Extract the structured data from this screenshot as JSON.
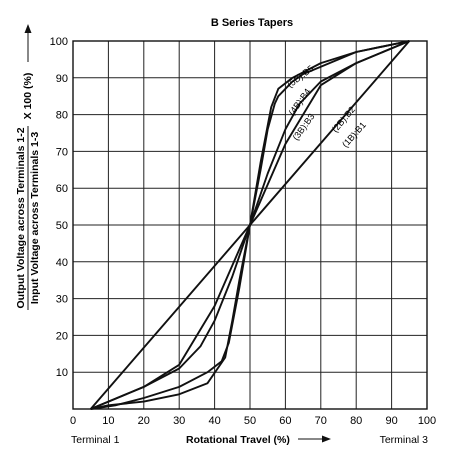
{
  "chart_data": {
    "type": "line",
    "title": "B Series Tapers",
    "xlabel": "Rotational Travel (%)",
    "ylabel_numerator": "Output Voltage across Terminals 1-2",
    "ylabel_denominator": "Input Voltage across Terminals 1-3",
    "ylabel_factor": "X 100 (%)",
    "xlim": [
      0,
      100
    ],
    "ylim": [
      0,
      100
    ],
    "x_ticks": [
      "0",
      "10",
      "20",
      "30",
      "40",
      "50",
      "60",
      "70",
      "80",
      "90",
      "100"
    ],
    "y_ticks": [
      "10",
      "20",
      "30",
      "40",
      "50",
      "60",
      "70",
      "80",
      "90",
      "100"
    ],
    "grid": true,
    "terminal_left": "Terminal 1",
    "terminal_right": "Terminal 3",
    "series": [
      {
        "name": "(1B):B1",
        "points": [
          [
            5,
            0
          ],
          [
            50,
            50
          ],
          [
            95,
            100
          ]
        ]
      },
      {
        "name": "(2B):B2",
        "points": [
          [
            5,
            0
          ],
          [
            20,
            6
          ],
          [
            30,
            12
          ],
          [
            40,
            28
          ],
          [
            50,
            50
          ],
          [
            60,
            72
          ],
          [
            70,
            88
          ],
          [
            80,
            94
          ],
          [
            95,
            100
          ]
        ]
      },
      {
        "name": "(3B):B3",
        "points": [
          [
            5,
            0
          ],
          [
            10,
            2
          ],
          [
            20,
            6
          ],
          [
            30,
            11
          ],
          [
            36,
            17
          ],
          [
            40,
            24
          ],
          [
            45,
            36
          ],
          [
            50,
            50
          ],
          [
            55,
            64
          ],
          [
            60,
            76
          ],
          [
            64,
            83
          ],
          [
            70,
            89
          ],
          [
            80,
            94
          ],
          [
            90,
            98
          ],
          [
            95,
            100
          ]
        ]
      },
      {
        "name": "(4B):B4",
        "points": [
          [
            5,
            0
          ],
          [
            12,
            1
          ],
          [
            20,
            3
          ],
          [
            30,
            6
          ],
          [
            38,
            10
          ],
          [
            42,
            13
          ],
          [
            44,
            18
          ],
          [
            47,
            33
          ],
          [
            50,
            50
          ],
          [
            53,
            67
          ],
          [
            56,
            82
          ],
          [
            58,
            87
          ],
          [
            62,
            90
          ],
          [
            70,
            94
          ],
          [
            80,
            97
          ],
          [
            95,
            100
          ]
        ]
      },
      {
        "name": "(5B):B5",
        "points": [
          [
            5,
            0
          ],
          [
            10,
            1
          ],
          [
            20,
            2
          ],
          [
            30,
            4
          ],
          [
            38,
            7
          ],
          [
            43,
            14
          ],
          [
            45,
            24
          ],
          [
            47,
            35
          ],
          [
            50,
            50
          ],
          [
            53,
            65
          ],
          [
            55,
            76
          ],
          [
            57,
            83
          ],
          [
            58,
            85
          ],
          [
            62,
            89
          ],
          [
            65,
            91
          ],
          [
            70,
            93
          ],
          [
            80,
            97
          ],
          [
            95,
            100
          ]
        ]
      }
    ],
    "curve_labels": [
      "(5B):B5",
      "(4B):B4",
      "(3B):B3",
      "(2B):B2",
      "(1B):B1"
    ]
  }
}
